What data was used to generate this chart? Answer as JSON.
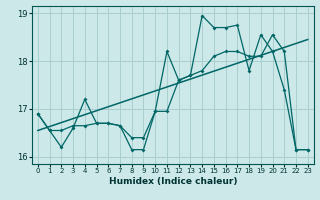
{
  "xlabel": "Humidex (Indice chaleur)",
  "xlim": [
    -0.5,
    23.5
  ],
  "ylim": [
    15.85,
    19.15
  ],
  "yticks": [
    16,
    17,
    18,
    19
  ],
  "xticks": [
    0,
    1,
    2,
    3,
    4,
    5,
    6,
    7,
    8,
    9,
    10,
    11,
    12,
    13,
    14,
    15,
    16,
    17,
    18,
    19,
    20,
    21,
    22,
    23
  ],
  "bg_color": "#cce8e8",
  "grid_color": "#aacfcf",
  "line_color": "#006666",
  "series1_x": [
    0,
    1,
    2,
    3,
    4,
    5,
    6,
    7,
    8,
    9,
    10,
    11,
    12,
    13,
    14,
    15,
    16,
    17,
    18,
    19,
    20,
    21,
    22,
    23
  ],
  "series1_y": [
    16.9,
    16.55,
    16.2,
    16.6,
    17.2,
    16.7,
    16.7,
    16.65,
    16.15,
    16.15,
    16.95,
    18.2,
    17.6,
    17.7,
    18.95,
    18.7,
    18.7,
    18.75,
    17.8,
    18.55,
    18.2,
    17.4,
    16.15,
    16.15
  ],
  "series2_x": [
    0,
    1,
    2,
    3,
    4,
    5,
    6,
    7,
    8,
    9,
    10,
    11,
    12,
    13,
    14,
    15,
    16,
    17,
    18,
    19,
    20,
    21,
    22,
    23
  ],
  "series2_y": [
    16.9,
    16.55,
    16.55,
    16.65,
    16.65,
    16.7,
    16.7,
    16.65,
    16.4,
    16.4,
    16.95,
    16.95,
    17.6,
    17.7,
    17.8,
    18.1,
    18.2,
    18.2,
    18.1,
    18.1,
    18.55,
    18.2,
    16.15,
    16.15
  ],
  "trend_x": [
    0,
    23
  ],
  "trend_y": [
    16.55,
    18.45
  ]
}
